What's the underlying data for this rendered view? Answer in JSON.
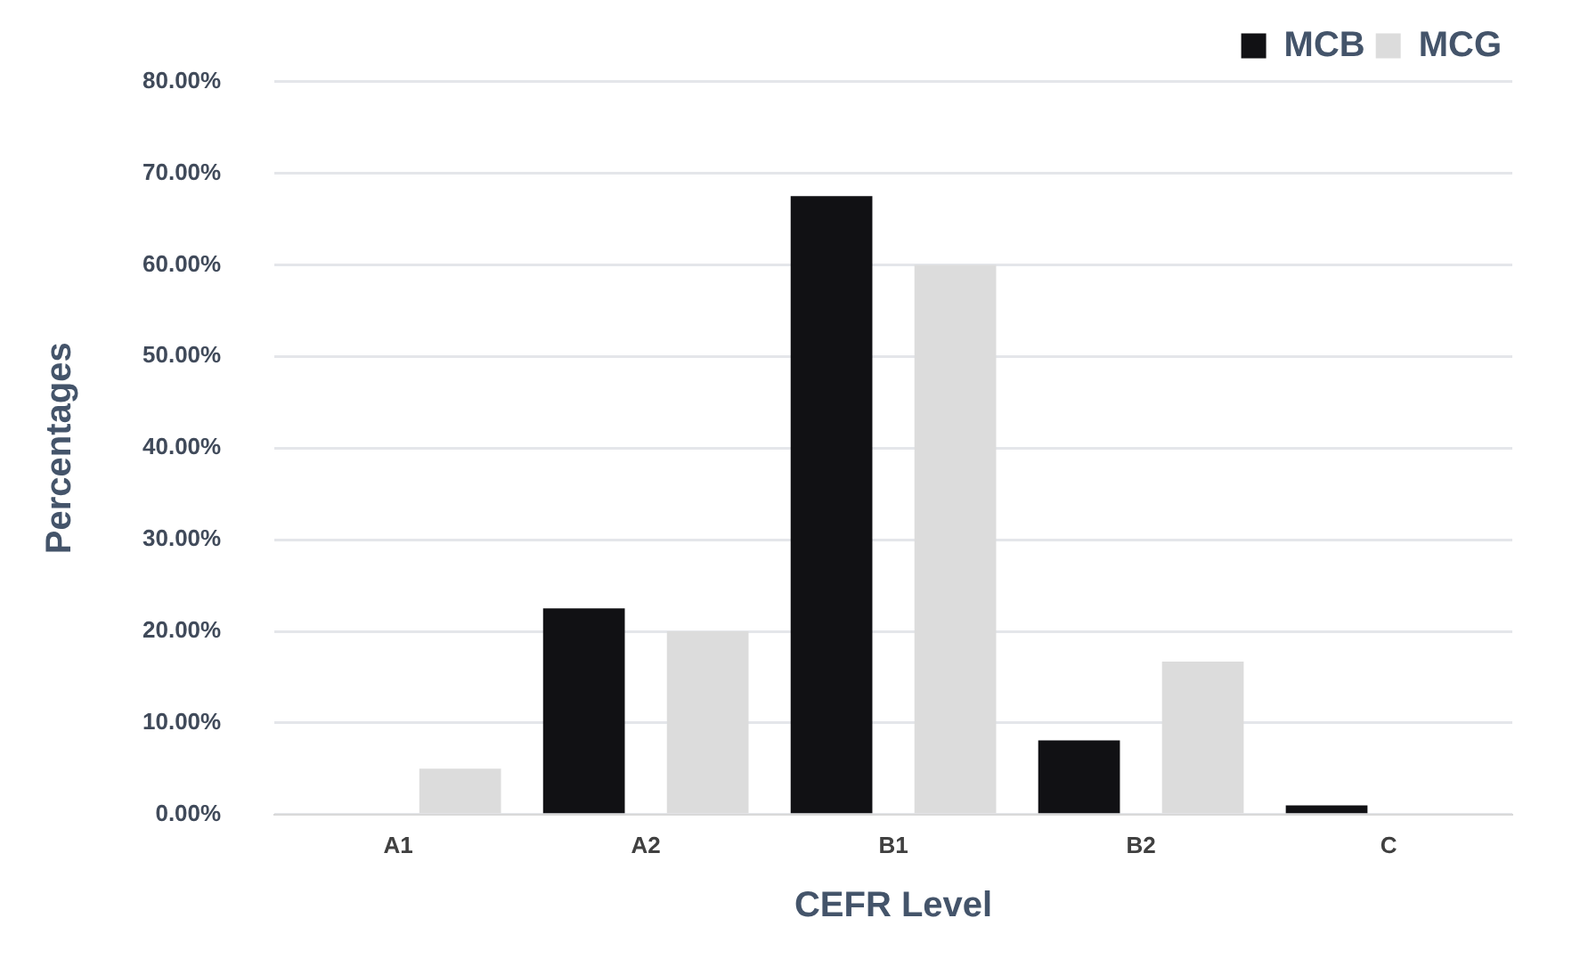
{
  "chart_data": {
    "type": "bar",
    "xlabel": "CEFR Level",
    "ylabel": "Percentages",
    "categories": [
      "A1",
      "A2",
      "B1",
      "B2",
      "C"
    ],
    "series": [
      {
        "name": "MCB",
        "color": "#111114",
        "values": [
          0,
          22.5,
          67.5,
          8.1,
          1
        ]
      },
      {
        "name": "MCG",
        "color": "#dcdcdc",
        "values": [
          5,
          20,
          60,
          16.7,
          0
        ]
      }
    ],
    "ylim": [
      0,
      80
    ],
    "yticks": [
      {
        "value": 0,
        "label": "0.00%"
      },
      {
        "value": 10,
        "label": "10.00%"
      },
      {
        "value": 20,
        "label": "20.00%"
      },
      {
        "value": 30,
        "label": "30.00%"
      },
      {
        "value": 40,
        "label": "40.00%"
      },
      {
        "value": 50,
        "label": "50.00%"
      },
      {
        "value": 60,
        "label": "60.00%"
      },
      {
        "value": 70,
        "label": "70.00%"
      },
      {
        "value": 80,
        "label": "80.00%"
      }
    ],
    "grid": "y",
    "legend": "top right"
  }
}
